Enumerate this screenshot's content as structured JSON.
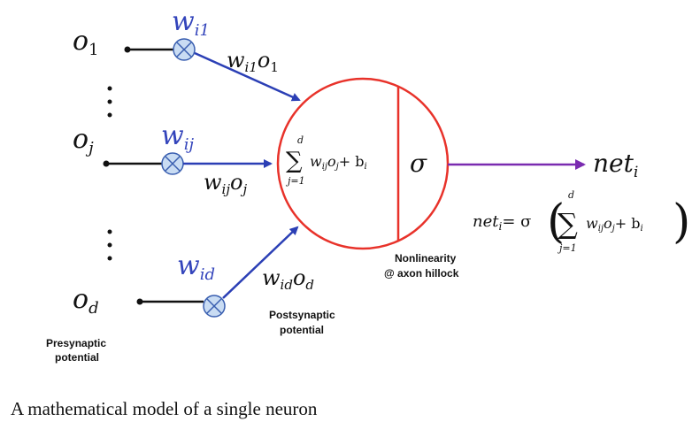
{
  "inputs": {
    "o1_base": "o",
    "o1_sub": "1",
    "oj_base": "o",
    "oj_sub": "j",
    "od_base": "o",
    "od_sub": "d"
  },
  "weights": {
    "w1_base": "w",
    "w1_sub": "i1",
    "wj_base": "w",
    "wj_sub": "ij",
    "wd_base": "w",
    "wd_sub": "id"
  },
  "weighted_inputs": {
    "w1o1": {
      "w": "w",
      "w_sub": "i1",
      "o": "o",
      "o_sub": "1"
    },
    "wjoj": {
      "w": "w",
      "w_sub": "ij",
      "o": "o",
      "o_sub": "j"
    },
    "wdod": {
      "w": "w",
      "w_sub": "id",
      "o": "o",
      "o_sub": "d"
    }
  },
  "neuron": {
    "sum_upper": "d",
    "sum_lower": "j=1",
    "sum_symbol": "∑",
    "sum_body": "w",
    "sum_body_sub": "ij",
    "sum_body_o": "o",
    "sum_body_o_sub": "j",
    "sum_plus_b": "+ b",
    "sum_b_sub": "i",
    "activation": "σ"
  },
  "output": {
    "net_base": "net",
    "net_sub": "i"
  },
  "formula": {
    "lhs": "net",
    "lhs_sub": "i",
    "eq": "= σ",
    "sum_upper": "d",
    "sum_lower": "j=1",
    "body": "w",
    "body_sub": "ij",
    "body_o": "o",
    "body_o_sub": "j",
    "plus_b": "+ b",
    "b_sub": "i"
  },
  "labels": {
    "presynaptic_line1": "Presynaptic",
    "presynaptic_line2": "potential",
    "postsynaptic_line1": "Postsynaptic",
    "postsynaptic_line2": "potential",
    "nonlinearity_line1": "Nonlinearity",
    "nonlinearity_line2": "@ axon hillock"
  },
  "caption": "A mathematical model of a single neuron",
  "colors": {
    "weight": "#3344bb",
    "arrow_blue": "#2b3fb5",
    "neuron_red": "#e8322a",
    "output_purple": "#7a2bb0",
    "multiplier_fill": "#c9dcf3",
    "multiplier_stroke": "#3a5fb0"
  }
}
